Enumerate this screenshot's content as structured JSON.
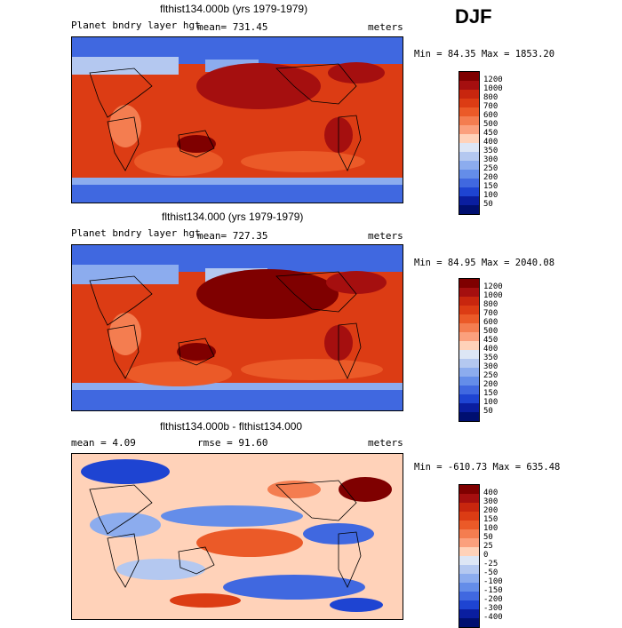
{
  "season": "DJF",
  "panels": [
    {
      "title": "flthist134.000b (yrs 1979-1979)",
      "left_label": "Planet bndry layer hgt",
      "mean_label": "mean= 731.45",
      "units": "meters",
      "minmax": "Min =  84.35 Max = 1853.20",
      "levels": [
        "1200",
        "1000",
        "800",
        "700",
        "600",
        "500",
        "450",
        "400",
        "350",
        "300",
        "250",
        "200",
        "150",
        "100",
        "50"
      ]
    },
    {
      "title": "flthist134.000 (yrs 1979-1979)",
      "left_label": "Planet bndry layer hgt",
      "mean_label": "mean= 727.35",
      "units": "meters",
      "minmax": "Min =  84.95 Max = 2040.08",
      "levels": [
        "1200",
        "1000",
        "800",
        "700",
        "600",
        "500",
        "450",
        "400",
        "350",
        "300",
        "250",
        "200",
        "150",
        "100",
        "50"
      ]
    },
    {
      "title": "flthist134.000b - flthist134.000",
      "left_label": "mean =    4.09",
      "mean_label": "rmse =   91.60",
      "units": "meters",
      "minmax": "Min = -610.73 Max = 635.48",
      "levels": [
        "400",
        "300",
        "200",
        "150",
        "100",
        "50",
        "25",
        "0",
        "-25",
        "-50",
        "-100",
        "-150",
        "-200",
        "-300",
        "-400"
      ]
    }
  ],
  "colors": {
    "scale": [
      "#7f0000",
      "#a50f0f",
      "#c8260e",
      "#dc3c14",
      "#eb5a28",
      "#f47d50",
      "#fba07d",
      "#ffd2b9",
      "#dde6f5",
      "#b4c8f0",
      "#8cacee",
      "#648de9",
      "#4068e0",
      "#1e44d2",
      "#0a1ea0",
      "#000f70"
    ]
  }
}
